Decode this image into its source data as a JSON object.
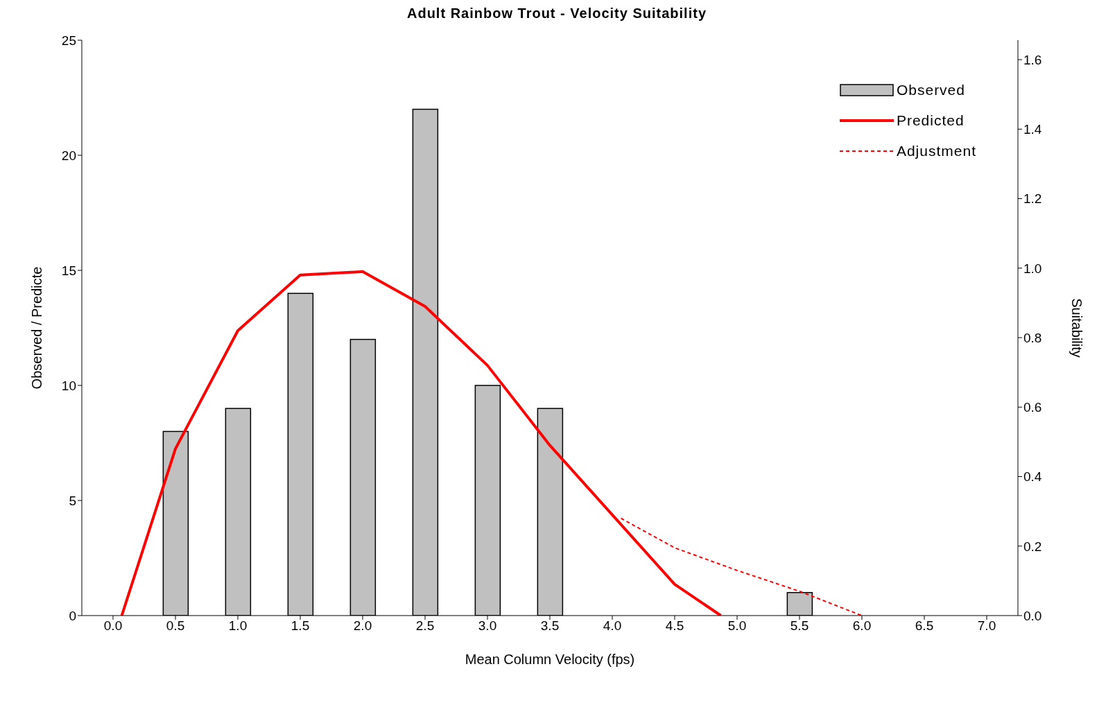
{
  "chart_data": {
    "type": "bar",
    "title": "Adult Rainbow Trout - Velocity Suitability",
    "xlabel": "Mean Column Velocity (fps)",
    "ylabel": "Observed / Predicte",
    "y2label": "Suitability",
    "xlim": [
      -0.25,
      7.25
    ],
    "xticks": [
      {
        "value": 0,
        "label": "0.0"
      },
      {
        "value": 0.5,
        "label": "0.5"
      },
      {
        "value": 1,
        "label": "1.0"
      },
      {
        "value": 1.5,
        "label": "1.5"
      },
      {
        "value": 2,
        "label": "2.0"
      },
      {
        "value": 2.5,
        "label": "2.5"
      },
      {
        "value": 3,
        "label": "3.0"
      },
      {
        "value": 3.5,
        "label": "3.5"
      },
      {
        "value": 4,
        "label": "4.0"
      },
      {
        "value": 4.5,
        "label": "4.5"
      },
      {
        "value": 5,
        "label": "5.0"
      },
      {
        "value": 5.5,
        "label": "5.5"
      },
      {
        "value": 6,
        "label": "6.0"
      },
      {
        "value": 6.5,
        "label": "6.5"
      },
      {
        "value": 7,
        "label": "7.0"
      }
    ],
    "ylim": [
      0,
      25
    ],
    "yticks": [
      0,
      5,
      10,
      15,
      20,
      25
    ],
    "y2lim": [
      0,
      1.656
    ],
    "y2ticks": [
      {
        "value": 0,
        "label": "0.0"
      },
      {
        "value": 0.2,
        "label": "0.2"
      },
      {
        "value": 0.4,
        "label": "0.4"
      },
      {
        "value": 0.6,
        "label": "0.6"
      },
      {
        "value": 0.8,
        "label": "0.8"
      },
      {
        "value": 1,
        "label": "1.0"
      },
      {
        "value": 1.2,
        "label": "1.2"
      },
      {
        "value": 1.4,
        "label": "1.4"
      },
      {
        "value": 1.6,
        "label": "1.6"
      }
    ],
    "legend": "top right",
    "series": [
      {
        "name": "Observed",
        "color": "#c0c0c0",
        "x": [
          0.5,
          1,
          1.5,
          2,
          2.5,
          3,
          3.5,
          5.5
        ],
        "values": [
          8,
          9,
          14,
          12,
          22,
          10,
          9,
          1
        ]
      },
      {
        "name": "Predicted",
        "type": "line",
        "axis": "y2",
        "color": "#ff0000",
        "line_style": "solid",
        "x": [
          0.07,
          0.5,
          1,
          1.5,
          2,
          2.5,
          3,
          3.5,
          4,
          4.5,
          4.87
        ],
        "values": [
          0,
          0.48,
          0.82,
          0.98,
          0.99,
          0.89,
          0.72,
          0.49,
          0.29,
          0.09,
          0
        ]
      },
      {
        "name": "Adjustment",
        "type": "line",
        "axis": "y2",
        "color": "#ff0000",
        "line_style": "dashed",
        "x": [
          4.07,
          4.5,
          5,
          5.5,
          6
        ],
        "values": [
          0.28,
          0.195,
          0.13,
          0.07,
          0
        ]
      }
    ]
  }
}
